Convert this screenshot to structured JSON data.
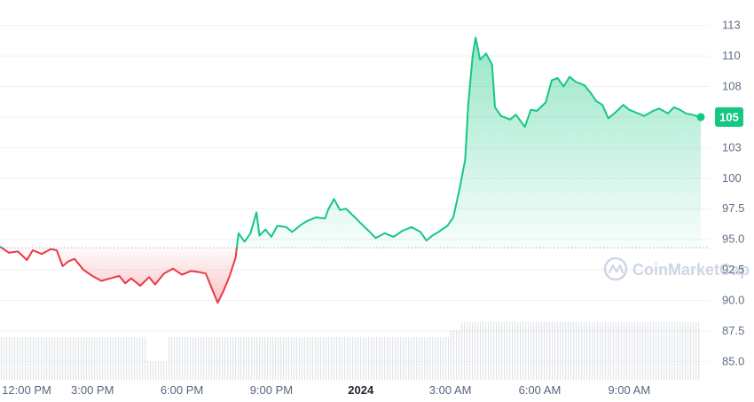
{
  "chart_data": {
    "type": "line",
    "watermark": "CoinMarketCap",
    "current_price_label": "105",
    "reference_price": 94.3,
    "colors": {
      "up": "#16c784",
      "down": "#ea3943",
      "up_fill": "#16c784",
      "down_fill": "#ea3943",
      "reference_line": "#a6b0c3",
      "volume": "#c9cfd9",
      "label_bg": "#16c784",
      "label_text": "#ffffff"
    },
    "y_ticks": [
      "113",
      "110",
      "108",
      "105",
      "103",
      "100",
      "97.5",
      "95.0",
      "92.5",
      "90.0",
      "87.5",
      "85.0"
    ],
    "y_tick_values": [
      112.5,
      110,
      107.5,
      105,
      102.5,
      100,
      97.5,
      95.0,
      92.5,
      90.0,
      87.5,
      85.0
    ],
    "ylim": [
      83.5,
      114
    ],
    "x_ticks": [
      "12:00 PM",
      "3:00 PM",
      "6:00 PM",
      "9:00 PM",
      "2024",
      "3:00 AM",
      "6:00 AM",
      "9:00 AM"
    ],
    "x_tick_hours": [
      0,
      3,
      6,
      9,
      12,
      15,
      18,
      21
    ],
    "x_bold_tick": "2024",
    "xlim_hours": [
      -0.1,
      23.4
    ],
    "x_unit": "hours since 12:00 PM",
    "series": [
      {
        "points": [
          [
            -0.1,
            94.4
          ],
          [
            0.2,
            93.9
          ],
          [
            0.5,
            94.0
          ],
          [
            0.8,
            93.3
          ],
          [
            1.0,
            94.1
          ],
          [
            1.3,
            93.8
          ],
          [
            1.6,
            94.2
          ],
          [
            1.8,
            94.1
          ],
          [
            2.0,
            92.8
          ],
          [
            2.2,
            93.2
          ],
          [
            2.4,
            93.4
          ],
          [
            2.7,
            92.5
          ],
          [
            3.0,
            92.0
          ],
          [
            3.3,
            91.6
          ],
          [
            3.6,
            91.8
          ],
          [
            3.9,
            92.0
          ],
          [
            4.1,
            91.4
          ],
          [
            4.3,
            91.8
          ],
          [
            4.6,
            91.2
          ],
          [
            4.9,
            91.9
          ],
          [
            5.1,
            91.3
          ],
          [
            5.4,
            92.2
          ],
          [
            5.7,
            92.6
          ],
          [
            6.0,
            92.1
          ],
          [
            6.3,
            92.4
          ],
          [
            6.6,
            92.3
          ],
          [
            6.8,
            92.2
          ],
          [
            7.0,
            91.0
          ],
          [
            7.2,
            89.8
          ],
          [
            7.4,
            90.8
          ],
          [
            7.6,
            92.0
          ],
          [
            7.8,
            93.5
          ],
          [
            7.9,
            95.5
          ],
          [
            8.1,
            94.8
          ],
          [
            8.3,
            95.5
          ],
          [
            8.5,
            97.2
          ],
          [
            8.6,
            95.3
          ],
          [
            8.8,
            95.8
          ],
          [
            9.0,
            95.2
          ],
          [
            9.2,
            96.1
          ],
          [
            9.5,
            96.0
          ],
          [
            9.7,
            95.6
          ],
          [
            10.0,
            96.2
          ],
          [
            10.2,
            96.5
          ],
          [
            10.5,
            96.8
          ],
          [
            10.8,
            96.7
          ],
          [
            10.9,
            97.4
          ],
          [
            11.1,
            98.3
          ],
          [
            11.3,
            97.4
          ],
          [
            11.5,
            97.5
          ],
          [
            11.8,
            96.8
          ],
          [
            12.0,
            96.3
          ],
          [
            12.3,
            95.6
          ],
          [
            12.5,
            95.1
          ],
          [
            12.8,
            95.5
          ],
          [
            13.1,
            95.2
          ],
          [
            13.4,
            95.7
          ],
          [
            13.7,
            96.0
          ],
          [
            14.0,
            95.6
          ],
          [
            14.2,
            94.9
          ],
          [
            14.4,
            95.3
          ],
          [
            14.6,
            95.6
          ],
          [
            14.9,
            96.1
          ],
          [
            15.1,
            96.8
          ],
          [
            15.3,
            99.0
          ],
          [
            15.5,
            101.5
          ],
          [
            15.6,
            106.0
          ],
          [
            15.75,
            110.0
          ],
          [
            15.85,
            111.5
          ],
          [
            16.0,
            109.7
          ],
          [
            16.2,
            110.2
          ],
          [
            16.4,
            109.3
          ],
          [
            16.5,
            105.8
          ],
          [
            16.7,
            105.1
          ],
          [
            17.0,
            104.8
          ],
          [
            17.2,
            105.2
          ],
          [
            17.5,
            104.2
          ],
          [
            17.7,
            105.6
          ],
          [
            17.9,
            105.5
          ],
          [
            18.2,
            106.2
          ],
          [
            18.4,
            108.0
          ],
          [
            18.6,
            108.2
          ],
          [
            18.8,
            107.5
          ],
          [
            19.0,
            108.3
          ],
          [
            19.2,
            107.9
          ],
          [
            19.5,
            107.6
          ],
          [
            19.7,
            107.0
          ],
          [
            19.9,
            106.3
          ],
          [
            20.1,
            106.0
          ],
          [
            20.3,
            104.9
          ],
          [
            20.5,
            105.3
          ],
          [
            20.8,
            106.0
          ],
          [
            21.0,
            105.6
          ],
          [
            21.3,
            105.3
          ],
          [
            21.5,
            105.1
          ],
          [
            21.8,
            105.5
          ],
          [
            22.0,
            105.7
          ],
          [
            22.3,
            105.3
          ],
          [
            22.5,
            105.8
          ],
          [
            22.7,
            105.6
          ],
          [
            22.9,
            105.3
          ],
          [
            23.1,
            105.2
          ],
          [
            23.4,
            105.0
          ]
        ]
      }
    ]
  }
}
